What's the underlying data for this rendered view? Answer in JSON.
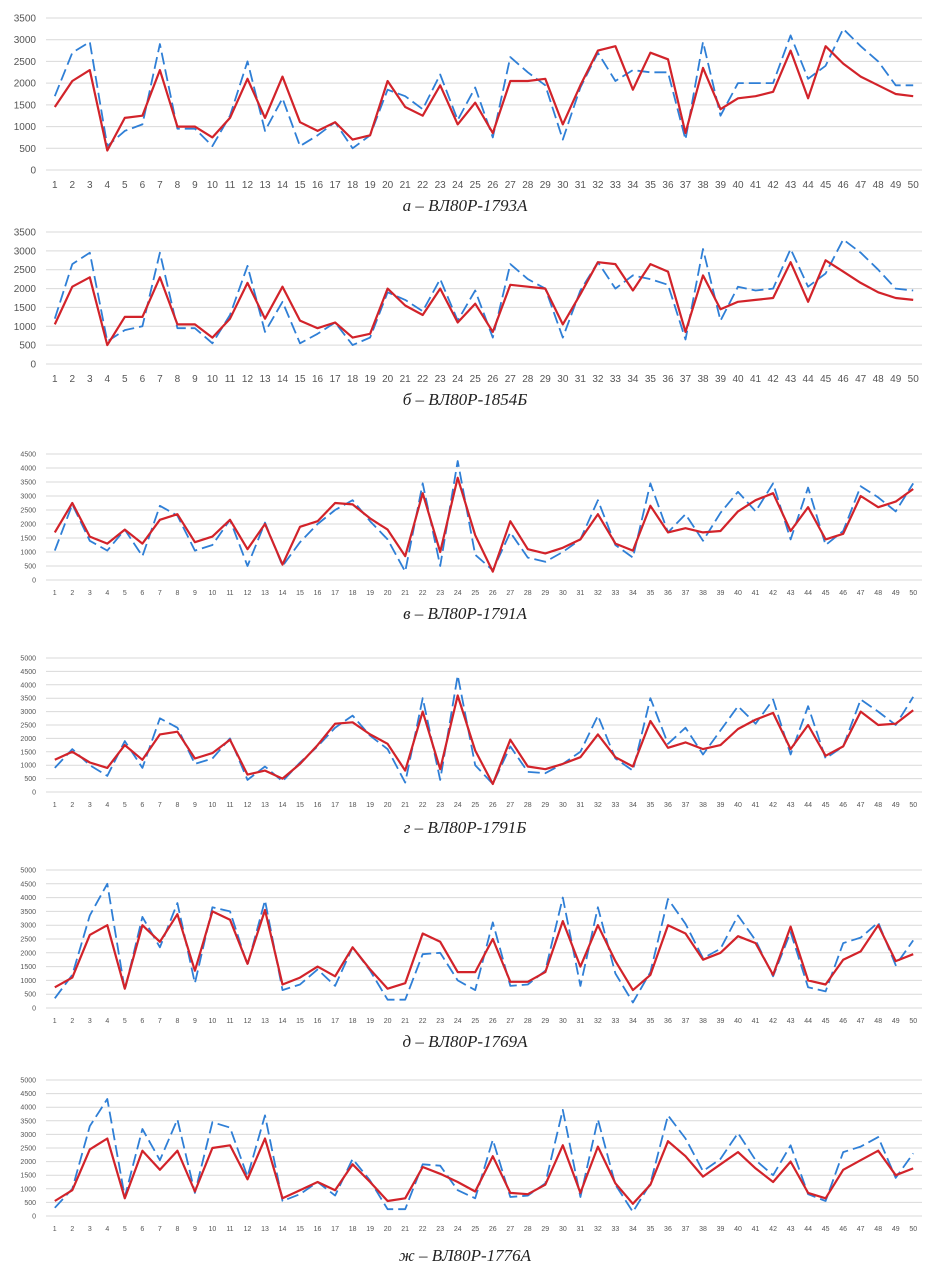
{
  "colors": {
    "model": "#d2232a",
    "measured": "#2f7fd6",
    "grid": "#d9d9d9"
  },
  "chart_data": [
    {
      "type": "line",
      "caption": "а – ВЛ80Р-1793А",
      "ylim": [
        0,
        3500
      ],
      "yticks": [
        "0",
        "500",
        "1000",
        "1500",
        "2000",
        "2500",
        "3000",
        "3500"
      ],
      "x": [
        1,
        2,
        3,
        4,
        5,
        6,
        7,
        8,
        9,
        10,
        11,
        12,
        13,
        14,
        15,
        16,
        17,
        18,
        19,
        20,
        21,
        22,
        23,
        24,
        25,
        26,
        27,
        28,
        29,
        30,
        31,
        32,
        33,
        34,
        35,
        36,
        37,
        38,
        39,
        40,
        41,
        42,
        43,
        44,
        45,
        46,
        47,
        48,
        49,
        50
      ],
      "series": [
        {
          "style": "dashed",
          "color": "#2f7fd6",
          "values": [
            1700,
            2700,
            2950,
            550,
            900,
            1050,
            2900,
            950,
            950,
            550,
            1250,
            2500,
            900,
            1650,
            550,
            800,
            1100,
            500,
            800,
            1850,
            1700,
            1400,
            2200,
            1150,
            1900,
            750,
            2600,
            2250,
            1950,
            700,
            1900,
            2700,
            2050,
            2300,
            2250,
            2250,
            700,
            2950,
            1250,
            2000,
            2000,
            2000,
            3100,
            2100,
            2400,
            3250,
            2850,
            2500,
            1950,
            1950
          ]
        },
        {
          "style": "solid",
          "color": "#d2232a",
          "values": [
            1450,
            2050,
            2300,
            450,
            1200,
            1250,
            2300,
            1000,
            1000,
            750,
            1200,
            2100,
            1200,
            2150,
            1100,
            900,
            1100,
            700,
            800,
            2050,
            1450,
            1250,
            1950,
            1050,
            1550,
            850,
            2050,
            2050,
            2100,
            1050,
            1950,
            2750,
            2850,
            1850,
            2700,
            2550,
            850,
            2350,
            1400,
            1650,
            1700,
            1800,
            2750,
            1650,
            2850,
            2450,
            2150,
            1950,
            1750,
            1700
          ]
        }
      ]
    },
    {
      "type": "line",
      "caption": "б – ВЛ80Р-1854Б",
      "ylim": [
        0,
        3500
      ],
      "yticks": [
        "0",
        "500",
        "1000",
        "1500",
        "2000",
        "2500",
        "3000",
        "3500"
      ],
      "x": [
        1,
        2,
        3,
        4,
        5,
        6,
        7,
        8,
        9,
        10,
        11,
        12,
        13,
        14,
        15,
        16,
        17,
        18,
        19,
        20,
        21,
        22,
        23,
        24,
        25,
        26,
        27,
        28,
        29,
        30,
        31,
        32,
        33,
        34,
        35,
        36,
        37,
        38,
        39,
        40,
        41,
        42,
        43,
        44,
        45,
        46,
        47,
        48,
        49,
        50
      ],
      "series": [
        {
          "style": "dashed",
          "color": "#2f7fd6",
          "values": [
            1200,
            2650,
            2950,
            600,
            900,
            1000,
            2950,
            950,
            950,
            550,
            1300,
            2600,
            850,
            1650,
            550,
            800,
            1100,
            500,
            700,
            1900,
            1700,
            1400,
            2250,
            1150,
            1950,
            700,
            2650,
            2250,
            2000,
            700,
            1950,
            2700,
            2000,
            2350,
            2250,
            2100,
            650,
            3050,
            1150,
            2050,
            1950,
            2000,
            3050,
            2050,
            2400,
            3300,
            2950,
            2500,
            2000,
            1950
          ]
        },
        {
          "style": "solid",
          "color": "#d2232a",
          "values": [
            1050,
            2050,
            2300,
            500,
            1250,
            1250,
            2300,
            1050,
            1050,
            700,
            1200,
            2150,
            1200,
            2050,
            1150,
            950,
            1100,
            700,
            800,
            2000,
            1550,
            1300,
            2000,
            1100,
            1600,
            850,
            2100,
            2050,
            2000,
            1050,
            1850,
            2700,
            2650,
            1950,
            2650,
            2450,
            850,
            2350,
            1450,
            1650,
            1700,
            1750,
            2700,
            1650,
            2750,
            2450,
            2150,
            1900,
            1750,
            1700
          ]
        }
      ]
    },
    {
      "type": "line",
      "caption": "в – ВЛ80Р-1791А",
      "ylim": [
        0,
        4500
      ],
      "yticks": [
        "0",
        "500",
        "1000",
        "1500",
        "2000",
        "2500",
        "3000",
        "3500",
        "4000",
        "4500"
      ],
      "x": [
        1,
        2,
        3,
        4,
        5,
        6,
        7,
        8,
        9,
        10,
        11,
        12,
        13,
        14,
        15,
        16,
        17,
        18,
        19,
        20,
        21,
        22,
        23,
        24,
        25,
        26,
        27,
        28,
        29,
        30,
        31,
        32,
        33,
        34,
        35,
        36,
        37,
        38,
        39,
        40,
        41,
        42,
        43,
        44,
        45,
        46,
        47,
        48,
        49,
        50
      ],
      "series": [
        {
          "style": "dashed",
          "color": "#2f7fd6",
          "values": [
            1050,
            2700,
            1400,
            1050,
            1800,
            850,
            2650,
            2300,
            1050,
            1250,
            2150,
            500,
            2050,
            500,
            1350,
            2000,
            2500,
            2850,
            2100,
            1450,
            300,
            3450,
            500,
            4250,
            900,
            350,
            1700,
            800,
            650,
            1000,
            1450,
            2850,
            1250,
            800,
            3450,
            1700,
            2350,
            1400,
            2400,
            3150,
            2450,
            3450,
            1450,
            3300,
            1250,
            1750,
            3350,
            2950,
            2450,
            3450
          ]
        },
        {
          "style": "solid",
          "color": "#d2232a",
          "values": [
            1700,
            2750,
            1550,
            1300,
            1800,
            1300,
            2150,
            2350,
            1350,
            1550,
            2150,
            1100,
            2000,
            550,
            1900,
            2100,
            2750,
            2700,
            2200,
            1800,
            850,
            3100,
            1000,
            3650,
            1600,
            300,
            2100,
            1100,
            950,
            1150,
            1450,
            2350,
            1300,
            1050,
            2650,
            1700,
            1850,
            1700,
            1750,
            2450,
            2850,
            3100,
            1750,
            2600,
            1450,
            1650,
            3000,
            2600,
            2800,
            3250
          ]
        }
      ]
    },
    {
      "type": "line",
      "caption": "г – ВЛ80Р-1791Б",
      "ylim": [
        0,
        5000
      ],
      "yticks": [
        "0",
        "500",
        "1000",
        "1500",
        "2000",
        "2500",
        "3000",
        "3500",
        "4000",
        "4500",
        "5000"
      ],
      "x": [
        1,
        2,
        3,
        4,
        5,
        6,
        7,
        8,
        9,
        10,
        11,
        12,
        13,
        14,
        15,
        16,
        17,
        18,
        19,
        20,
        21,
        22,
        23,
        24,
        25,
        26,
        27,
        28,
        29,
        30,
        31,
        32,
        33,
        34,
        35,
        36,
        37,
        38,
        39,
        40,
        41,
        42,
        43,
        44,
        45,
        46,
        47,
        48,
        49,
        50
      ],
      "series": [
        {
          "style": "dashed",
          "color": "#2f7fd6",
          "values": [
            900,
            1600,
            1000,
            600,
            1900,
            900,
            2750,
            2400,
            1050,
            1250,
            2000,
            450,
            950,
            400,
            1100,
            1700,
            2400,
            2850,
            2100,
            1600,
            350,
            3500,
            450,
            4350,
            1000,
            300,
            1700,
            750,
            700,
            1050,
            1500,
            2850,
            1250,
            800,
            3500,
            1800,
            2400,
            1400,
            2300,
            3200,
            2550,
            3450,
            1400,
            3200,
            1250,
            1700,
            3450,
            3000,
            2500,
            3550
          ]
        },
        {
          "style": "solid",
          "color": "#d2232a",
          "values": [
            1200,
            1500,
            1100,
            900,
            1750,
            1200,
            2150,
            2250,
            1250,
            1450,
            1950,
            650,
            800,
            500,
            1050,
            1750,
            2550,
            2600,
            2150,
            1800,
            800,
            3000,
            850,
            3600,
            1550,
            300,
            1950,
            950,
            850,
            1050,
            1300,
            2150,
            1300,
            950,
            2650,
            1650,
            1850,
            1600,
            1750,
            2350,
            2700,
            2950,
            1600,
            2500,
            1350,
            1700,
            3000,
            2500,
            2550,
            3050
          ]
        }
      ]
    },
    {
      "type": "line",
      "caption": "д – ВЛ80Р-1769А",
      "ylim": [
        0,
        5000
      ],
      "yticks": [
        "0",
        "500",
        "1000",
        "1500",
        "2000",
        "2500",
        "3000",
        "3500",
        "4000",
        "4500",
        "5000"
      ],
      "x": [
        1,
        2,
        3,
        4,
        5,
        6,
        7,
        8,
        9,
        10,
        11,
        12,
        13,
        14,
        15,
        16,
        17,
        18,
        19,
        20,
        21,
        22,
        23,
        24,
        25,
        26,
        27,
        28,
        29,
        30,
        31,
        32,
        33,
        34,
        35,
        36,
        37,
        38,
        39,
        40,
        41,
        42,
        43,
        44,
        45,
        46,
        47,
        48,
        49,
        50
      ],
      "series": [
        {
          "style": "dashed",
          "color": "#2f7fd6",
          "values": [
            350,
            1200,
            3350,
            4500,
            650,
            3300,
            2200,
            3800,
            900,
            3650,
            3500,
            1550,
            3900,
            650,
            850,
            1400,
            800,
            2200,
            1350,
            300,
            300,
            1950,
            2000,
            1000,
            650,
            3100,
            800,
            850,
            1350,
            4000,
            800,
            3650,
            1250,
            200,
            1300,
            3950,
            3050,
            1800,
            2150,
            3350,
            2450,
            1150,
            2750,
            750,
            600,
            2350,
            2550,
            3100,
            1550,
            2450
          ]
        },
        {
          "style": "solid",
          "color": "#d2232a",
          "values": [
            750,
            1100,
            2650,
            3000,
            700,
            3000,
            2400,
            3400,
            1350,
            3500,
            3200,
            1600,
            3550,
            850,
            1100,
            1500,
            1150,
            2200,
            1400,
            700,
            900,
            2700,
            2400,
            1300,
            1300,
            2500,
            950,
            950,
            1300,
            3150,
            1500,
            3000,
            1700,
            650,
            1200,
            3000,
            2700,
            1750,
            2000,
            2600,
            2350,
            1200,
            2950,
            1000,
            850,
            1750,
            2050,
            3000,
            1700,
            1950
          ]
        }
      ]
    },
    {
      "type": "line",
      "caption": "ж – ВЛ80Р-1776А",
      "ylim": [
        0,
        5000
      ],
      "yticks": [
        "0",
        "500",
        "1000",
        "1500",
        "2000",
        "2500",
        "3000",
        "3500",
        "4000",
        "4500",
        "5000"
      ],
      "x": [
        1,
        2,
        3,
        4,
        5,
        6,
        7,
        8,
        9,
        10,
        11,
        12,
        13,
        14,
        15,
        16,
        17,
        18,
        19,
        20,
        21,
        22,
        23,
        24,
        25,
        26,
        27,
        28,
        29,
        30,
        31,
        32,
        33,
        34,
        35,
        36,
        37,
        38,
        39,
        40,
        41,
        42,
        43,
        44,
        45,
        46,
        47,
        48,
        49,
        50
      ],
      "series": [
        {
          "style": "dashed",
          "color": "#2f7fd6",
          "values": [
            300,
            1000,
            3300,
            4300,
            700,
            3200,
            2050,
            3550,
            850,
            3450,
            3250,
            1450,
            3700,
            550,
            800,
            1250,
            750,
            2100,
            1300,
            250,
            250,
            1900,
            1850,
            950,
            650,
            2800,
            700,
            750,
            1200,
            3900,
            700,
            3550,
            1150,
            150,
            1200,
            3700,
            2850,
            1650,
            2100,
            3050,
            2050,
            1500,
            2600,
            800,
            550,
            2350,
            2550,
            2900,
            1400,
            2300
          ]
        },
        {
          "style": "solid",
          "color": "#d2232a",
          "values": [
            550,
            950,
            2450,
            2850,
            650,
            2400,
            1700,
            2400,
            900,
            2500,
            2600,
            1350,
            2850,
            650,
            950,
            1250,
            950,
            1900,
            1250,
            550,
            650,
            1800,
            1550,
            1250,
            900,
            2200,
            850,
            800,
            1150,
            2600,
            850,
            2550,
            1200,
            450,
            1150,
            2750,
            2200,
            1450,
            1900,
            2350,
            1750,
            1250,
            2000,
            850,
            650,
            1700,
            2050,
            2400,
            1500,
            1750
          ]
        }
      ]
    }
  ]
}
